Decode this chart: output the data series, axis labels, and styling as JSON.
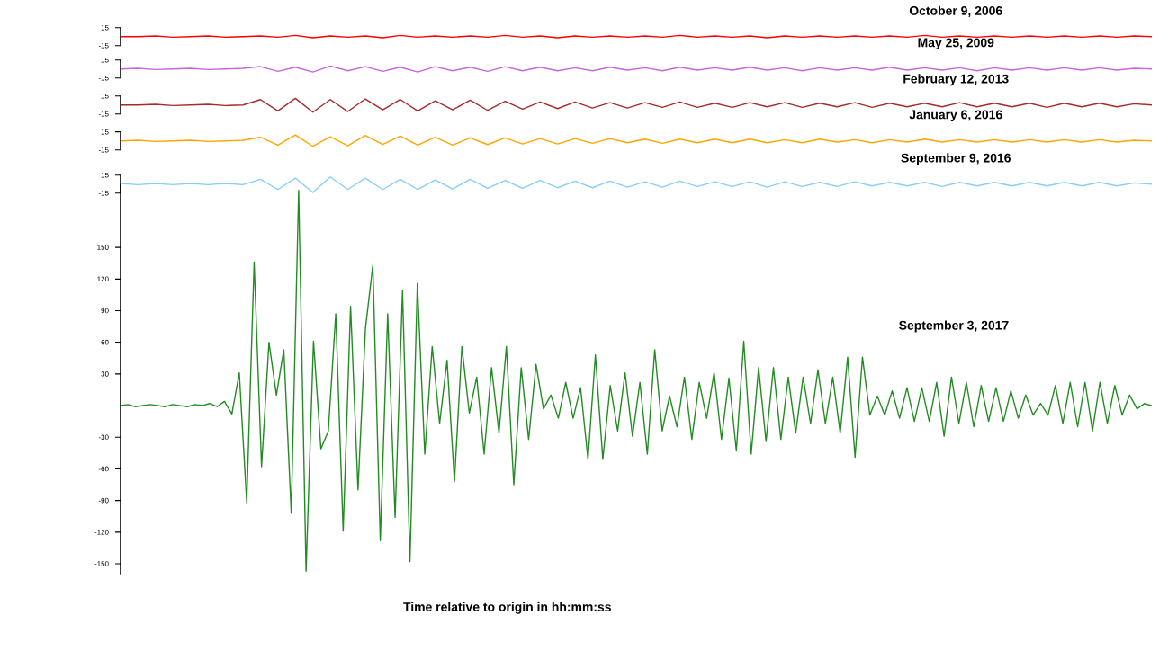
{
  "chart_data": [
    {
      "type": "line",
      "title": "October 9, 2006",
      "tick_labels": "y",
      "ylim": [
        -15,
        15
      ],
      "yticks": [
        15,
        -15
      ],
      "color": "#ff0000",
      "categories": [
        null,
        null,
        null,
        null,
        null,
        null,
        null,
        null,
        null,
        null,
        null,
        null,
        null,
        null,
        null,
        null,
        null,
        null,
        null,
        null,
        null,
        null,
        null,
        null,
        null,
        null,
        null,
        null,
        null,
        null,
        null,
        null,
        null,
        null,
        null,
        null,
        null,
        null,
        null,
        null,
        null,
        null,
        null,
        null,
        null,
        null,
        null,
        null,
        null,
        null,
        null,
        null,
        null,
        null,
        null,
        null,
        null,
        null,
        null,
        null
      ],
      "values": [
        0,
        0,
        1,
        -1,
        0,
        1,
        -1,
        0,
        1,
        -1,
        2,
        -2,
        1,
        -1,
        1,
        -2,
        2,
        -1,
        1,
        -1,
        1,
        -1,
        2,
        -1,
        1,
        -2,
        1,
        -1,
        1,
        -1,
        1,
        -1,
        2,
        -1,
        1,
        -1,
        1,
        -2,
        1,
        -1,
        1,
        -1,
        1,
        -1,
        1,
        -1,
        2,
        -1,
        1,
        -1,
        1,
        -1,
        1,
        -1,
        1,
        -1,
        1,
        -1,
        1,
        0
      ]
    },
    {
      "type": "line",
      "title": "May 25, 2009",
      "tick_labels": "y",
      "ylim": [
        -15,
        15
      ],
      "yticks": [
        15,
        -15
      ],
      "color": "#c864dc",
      "categories": [
        null,
        null,
        null,
        null,
        null,
        null,
        null,
        null,
        null,
        null,
        null,
        null,
        null,
        null,
        null,
        null,
        null,
        null,
        null,
        null,
        null,
        null,
        null,
        null,
        null,
        null,
        null,
        null,
        null,
        null,
        null,
        null,
        null,
        null,
        null,
        null,
        null,
        null,
        null,
        null,
        null,
        null,
        null,
        null,
        null,
        null,
        null,
        null,
        null,
        null,
        null,
        null,
        null,
        null,
        null,
        null,
        null,
        null,
        null,
        null
      ],
      "values": [
        0,
        1,
        -1,
        0,
        1,
        -1,
        0,
        1,
        4,
        -4,
        3,
        -5,
        5,
        -3,
        4,
        -4,
        3,
        -5,
        4,
        -3,
        3,
        -4,
        4,
        -3,
        3,
        -3,
        2,
        -3,
        3,
        -2,
        2,
        -3,
        3,
        -2,
        2,
        -2,
        3,
        -2,
        2,
        -3,
        2,
        -2,
        2,
        -2,
        3,
        -2,
        2,
        -2,
        2,
        -3,
        2,
        -2,
        2,
        -2,
        2,
        -2,
        2,
        -2,
        1,
        0
      ]
    },
    {
      "type": "line",
      "title": "February 12, 2013",
      "tick_labels": "y",
      "ylim": [
        -15,
        15
      ],
      "yticks": [
        15,
        -15
      ],
      "color": "#a52a2a",
      "categories": [
        null,
        null,
        null,
        null,
        null,
        null,
        null,
        null,
        null,
        null,
        null,
        null,
        null,
        null,
        null,
        null,
        null,
        null,
        null,
        null,
        null,
        null,
        null,
        null,
        null,
        null,
        null,
        null,
        null,
        null,
        null,
        null,
        null,
        null,
        null,
        null,
        null,
        null,
        null,
        null,
        null,
        null,
        null,
        null,
        null,
        null,
        null,
        null,
        null,
        null,
        null,
        null,
        null,
        null,
        null,
        null,
        null,
        null,
        null,
        null
      ],
      "values": [
        0,
        0,
        1,
        -1,
        0,
        1,
        -1,
        0,
        9,
        -10,
        11,
        -12,
        9,
        -11,
        10,
        -8,
        9,
        -10,
        7,
        -8,
        8,
        -9,
        6,
        -7,
        5,
        -6,
        5,
        -5,
        4,
        -5,
        4,
        -4,
        5,
        -4,
        3,
        -4,
        4,
        -3,
        4,
        -4,
        3,
        -3,
        4,
        -4,
        3,
        -3,
        3,
        -3,
        4,
        -3,
        3,
        -3,
        3,
        -4,
        3,
        -3,
        3,
        -3,
        2,
        0
      ]
    },
    {
      "type": "line",
      "title": "January 6, 2016",
      "tick_labels": "y",
      "ylim": [
        -15,
        15
      ],
      "yticks": [
        15,
        -15
      ],
      "color": "#ffa500",
      "categories": [
        null,
        null,
        null,
        null,
        null,
        null,
        null,
        null,
        null,
        null,
        null,
        null,
        null,
        null,
        null,
        null,
        null,
        null,
        null,
        null,
        null,
        null,
        null,
        null,
        null,
        null,
        null,
        null,
        null,
        null,
        null,
        null,
        null,
        null,
        null,
        null,
        null,
        null,
        null,
        null,
        null,
        null,
        null,
        null,
        null,
        null,
        null,
        null,
        null,
        null,
        null,
        null,
        null,
        null,
        null,
        null,
        null,
        null,
        null,
        null
      ],
      "values": [
        0,
        1,
        -1,
        0,
        1,
        -1,
        0,
        1,
        6,
        -7,
        10,
        -9,
        7,
        -8,
        9,
        -6,
        8,
        -7,
        6,
        -7,
        5,
        -6,
        5,
        -5,
        4,
        -5,
        4,
        -4,
        4,
        -3,
        3,
        -4,
        3,
        -3,
        3,
        -3,
        3,
        -3,
        2,
        -3,
        3,
        -2,
        2,
        -3,
        2,
        -2,
        3,
        -2,
        2,
        -2,
        2,
        -2,
        2,
        -2,
        2,
        -2,
        2,
        -2,
        1,
        0
      ]
    },
    {
      "type": "line",
      "title": "September 9, 2016",
      "tick_labels": "y",
      "ylim": [
        -15,
        15
      ],
      "yticks": [
        15,
        -15
      ],
      "color": "#87cefa",
      "categories": [
        null,
        null,
        null,
        null,
        null,
        null,
        null,
        null,
        null,
        null,
        null,
        null,
        null,
        null,
        null,
        null,
        null,
        null,
        null,
        null,
        null,
        null,
        null,
        null,
        null,
        null,
        null,
        null,
        null,
        null,
        null,
        null,
        null,
        null,
        null,
        null,
        null,
        null,
        null,
        null,
        null,
        null,
        null,
        null,
        null,
        null,
        null,
        null,
        null,
        null,
        null,
        null,
        null,
        null,
        null,
        null,
        null,
        null,
        null,
        null
      ],
      "values": [
        1,
        -1,
        1,
        -1,
        1,
        -1,
        1,
        -1,
        8,
        -9,
        10,
        -14,
        12,
        -9,
        10,
        -9,
        8,
        -9,
        7,
        -8,
        8,
        -7,
        6,
        -7,
        6,
        -6,
        5,
        -6,
        5,
        -5,
        4,
        -5,
        5,
        -4,
        4,
        -4,
        4,
        -5,
        4,
        -4,
        3,
        -4,
        4,
        -3,
        3,
        -3,
        3,
        -4,
        3,
        -3,
        3,
        -3,
        3,
        -3,
        3,
        -3,
        3,
        -3,
        2,
        0
      ]
    },
    {
      "type": "line",
      "title": "September 3, 2017",
      "xlabel": "Time relative to origin in hh:mm:ss",
      "tick_labels": "y",
      "ylim": [
        -160,
        210
      ],
      "yticks": [
        150,
        120,
        90,
        60,
        30,
        -30,
        -60,
        -90,
        -120,
        -150
      ],
      "color": "#228b22",
      "categories": [
        null,
        null,
        null,
        null,
        null,
        null,
        null,
        null,
        null,
        null,
        null,
        null,
        null,
        null,
        null,
        null,
        null,
        null,
        null,
        null,
        null,
        null,
        null,
        null,
        null,
        null,
        null,
        null,
        null,
        null,
        null,
        null,
        null,
        null,
        null,
        null,
        null,
        null,
        null,
        null,
        null,
        null,
        null,
        null,
        null,
        null,
        null,
        null,
        null,
        null,
        null,
        null,
        null,
        null,
        null,
        null,
        null,
        null,
        null,
        null,
        null,
        null,
        null,
        null,
        null,
        null,
        null,
        null,
        null,
        null,
        null,
        null,
        null,
        null,
        null,
        null,
        null,
        null,
        null,
        null,
        null,
        null,
        null,
        null,
        null,
        null,
        null,
        null,
        null,
        null,
        null,
        null,
        null,
        null,
        null,
        null,
        null,
        null,
        null,
        null,
        null,
        null,
        null,
        null,
        null,
        null,
        null,
        null,
        null,
        null,
        null,
        null,
        null,
        null,
        null,
        null,
        null,
        null,
        null,
        null,
        null,
        null,
        null,
        null,
        null,
        null,
        null,
        null,
        null,
        null,
        null,
        null,
        null,
        null,
        null,
        null,
        null,
        null,
        null,
        null
      ],
      "values": [
        0,
        1,
        -1,
        0,
        1,
        0,
        -1,
        1,
        0,
        -1,
        1,
        0,
        2,
        -1,
        4,
        -8,
        31,
        -92,
        136,
        -58,
        60,
        10,
        53,
        -102,
        204,
        -157,
        61,
        -41,
        -24,
        87,
        -119,
        94,
        -80,
        73,
        133,
        -128,
        87,
        -106,
        109,
        -148,
        116,
        -46,
        56,
        -17,
        43,
        -72,
        56,
        -7,
        27,
        -46,
        36,
        -26,
        56,
        -75,
        36,
        -32,
        39,
        -3,
        10,
        -12,
        22,
        -12,
        17,
        -51,
        48,
        -51,
        19,
        -24,
        31,
        -29,
        22,
        -46,
        53,
        -24,
        9,
        -20,
        27,
        -32,
        22,
        -12,
        31,
        -32,
        26,
        -43,
        61,
        -46,
        36,
        -34,
        36,
        -32,
        27,
        -26,
        27,
        -17,
        34,
        -17,
        27,
        -26,
        46,
        -49,
        46,
        -9,
        9,
        -9,
        14,
        -12,
        17,
        -15,
        17,
        -15,
        22,
        -29,
        27,
        -17,
        22,
        -20,
        19,
        -15,
        17,
        -15,
        14,
        -12,
        10,
        -9,
        2,
        -9,
        19,
        -17,
        22,
        -20,
        22,
        -24,
        22,
        -17,
        19,
        -9,
        10,
        -3,
        2,
        0
      ]
    }
  ]
}
